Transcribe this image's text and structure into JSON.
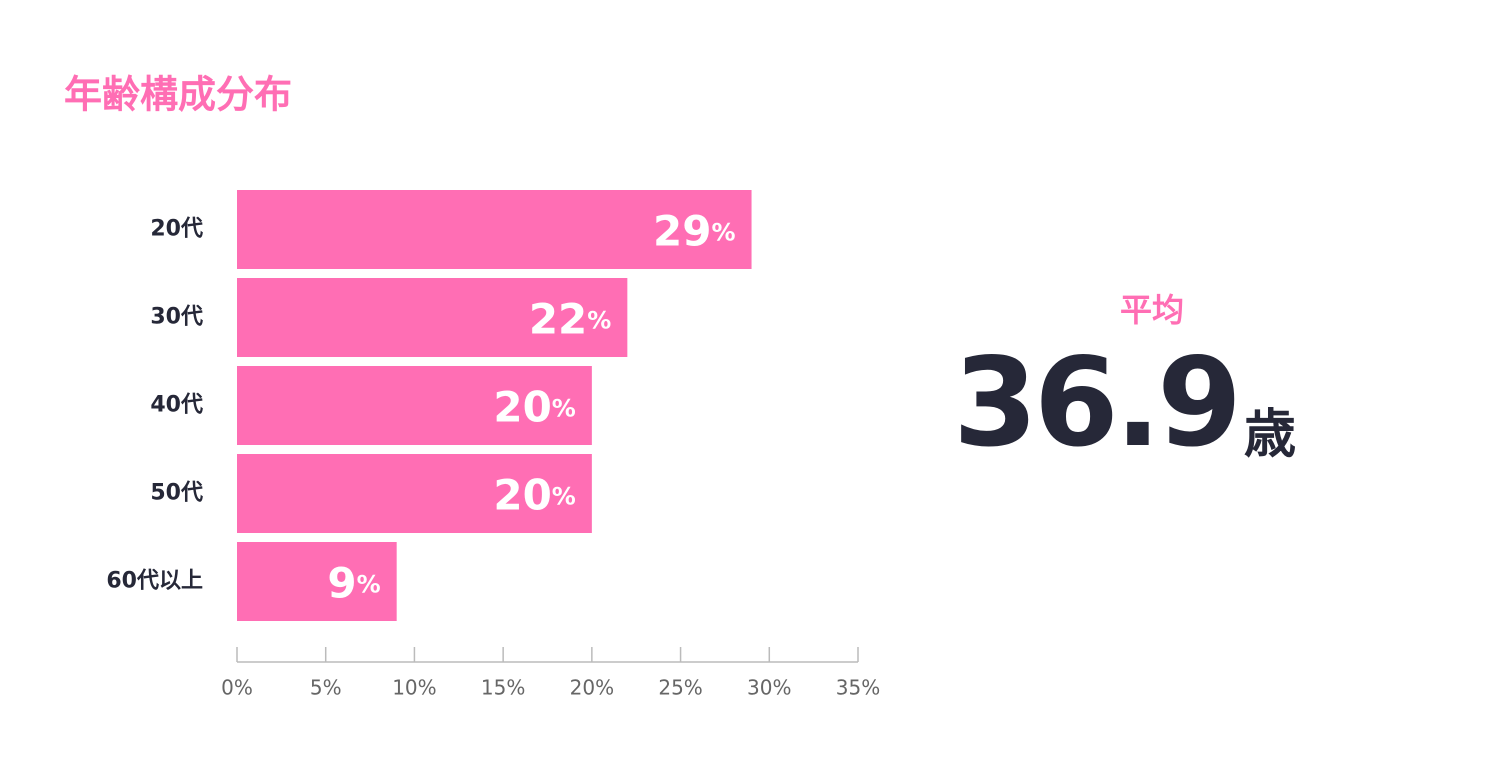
{
  "chart_data": {
    "type": "bar",
    "orientation": "horizontal",
    "title": "年齢構成分布",
    "categories": [
      "20代",
      "30代",
      "40代",
      "50代",
      "60代以上"
    ],
    "values": [
      29,
      22,
      20,
      20,
      9
    ],
    "value_labels": [
      "29%",
      "22%",
      "20%",
      "20%",
      "9%"
    ],
    "color": "#ff6eb4",
    "xlim": [
      0,
      35
    ],
    "xticks": [
      {
        "value": 0,
        "label": "0%"
      },
      {
        "value": 5,
        "label": "5%"
      },
      {
        "value": 10,
        "label": "10%"
      },
      {
        "value": 15,
        "label": "15%"
      },
      {
        "value": 20,
        "label": "20%"
      },
      {
        "value": 25,
        "label": "25%"
      },
      {
        "value": 30,
        "label": "30%"
      },
      {
        "value": 35,
        "label": "35%"
      }
    ],
    "average_label": "平均",
    "average_value": 36.9,
    "average_unit": "歳"
  }
}
